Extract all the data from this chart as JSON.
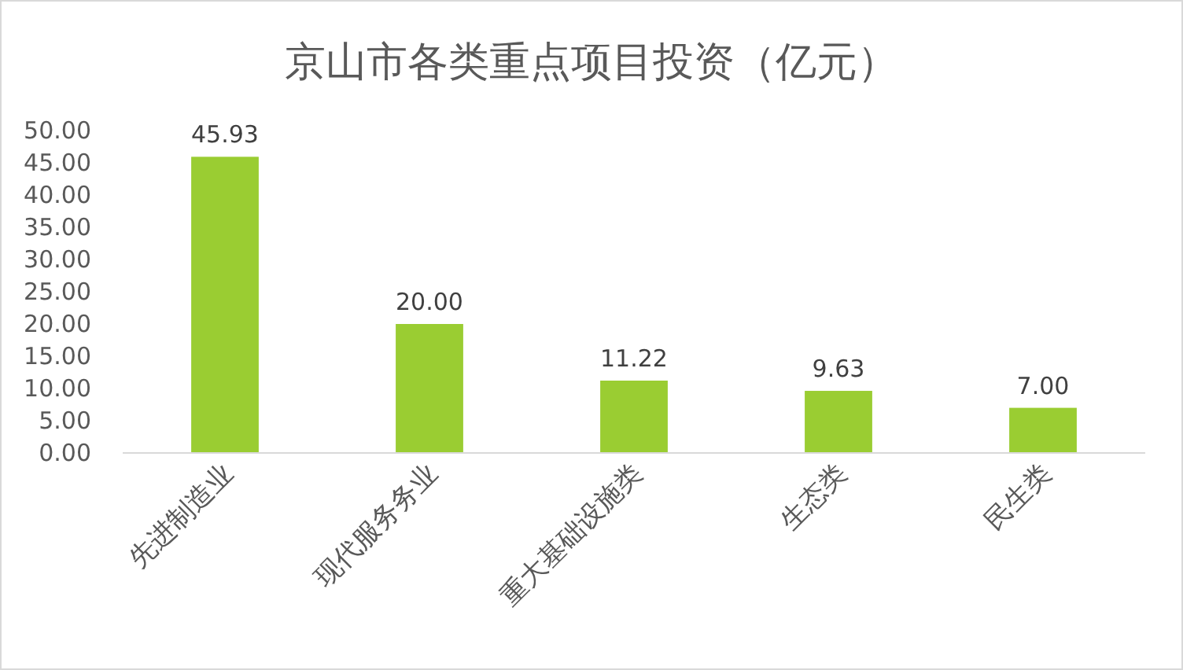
{
  "chart_data": {
    "type": "bar",
    "title": "京山市各类重点项目投资（亿元）",
    "categories": [
      "先进制造业",
      "现代服务务业",
      "重大基础设施类",
      "生态类",
      "民生类"
    ],
    "values": [
      45.93,
      20.0,
      11.22,
      9.63,
      7.0
    ],
    "value_labels": [
      "45.93",
      "20.00",
      "11.22",
      "9.63",
      "7.00"
    ],
    "color": "#9acd32",
    "ylim": [
      0,
      50
    ],
    "yticks": [
      {
        "value": 0,
        "label": "0.00"
      },
      {
        "value": 5,
        "label": "5.00"
      },
      {
        "value": 10,
        "label": "10.00"
      },
      {
        "value": 15,
        "label": "15.00"
      },
      {
        "value": 20,
        "label": "20.00"
      },
      {
        "value": 25,
        "label": "25.00"
      },
      {
        "value": 30,
        "label": "30.00"
      },
      {
        "value": 35,
        "label": "35.00"
      },
      {
        "value": 40,
        "label": "40.00"
      },
      {
        "value": 45,
        "label": "45.00"
      },
      {
        "value": 50,
        "label": "50.00"
      }
    ]
  }
}
